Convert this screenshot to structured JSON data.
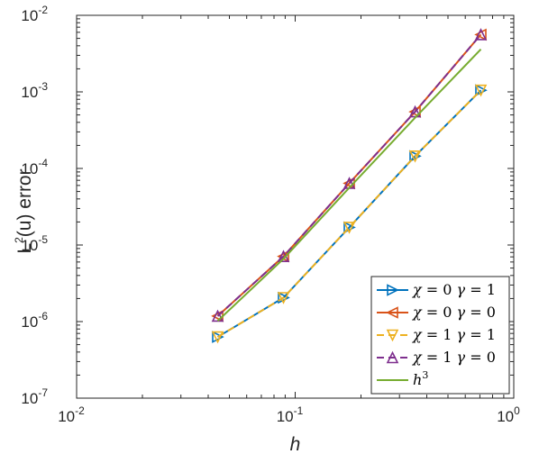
{
  "chart_data": {
    "type": "line",
    "xscale": "log",
    "yscale": "log",
    "xlim": [
      0.01,
      1
    ],
    "ylim": [
      1e-07,
      0.01
    ],
    "grid": false,
    "legend_position": "bottom-right",
    "xlabel": "h",
    "ylabel_base": "L",
    "ylabel_sup": "2",
    "ylabel_rest": "(u) error",
    "x_ticks": [
      {
        "value": 0.01,
        "base": "10",
        "exp": "-2"
      },
      {
        "value": 0.1,
        "base": "10",
        "exp": "-1"
      },
      {
        "value": 1,
        "base": "10",
        "exp": "0"
      }
    ],
    "y_ticks": [
      {
        "value": 1e-07,
        "base": "10",
        "exp": "-7"
      },
      {
        "value": 1e-06,
        "base": "10",
        "exp": "-6"
      },
      {
        "value": 1e-05,
        "base": "10",
        "exp": "-5"
      },
      {
        "value": 0.0001,
        "base": "10",
        "exp": "-4"
      },
      {
        "value": 0.001,
        "base": "10",
        "exp": "-3"
      },
      {
        "value": 0.01,
        "base": "10",
        "exp": "-2"
      }
    ],
    "series": [
      {
        "label_parts": [
          "χ",
          " = 0  ",
          "γ",
          " = 1"
        ],
        "color": "#0072bd",
        "marker": "triangle-right",
        "dash": "solid",
        "x": [
          0.0442,
          0.0884,
          0.1768,
          0.3536,
          0.7071
        ],
        "y": [
          6.3e-07,
          2.05e-06,
          1.7e-05,
          0.000145,
          0.00105
        ]
      },
      {
        "label_parts": [
          "χ",
          " = 0  ",
          "γ",
          " = 0"
        ],
        "color": "#d95319",
        "marker": "triangle-left",
        "dash": "solid",
        "x": [
          0.0442,
          0.0884,
          0.1768,
          0.3536,
          0.7071
        ],
        "y": [
          1.18e-06,
          7.1e-06,
          6.4e-05,
          0.00055,
          0.0056
        ]
      },
      {
        "label_parts": [
          "χ",
          " = 1  ",
          "γ",
          " = 1"
        ],
        "color": "#edb120",
        "marker": "triangle-down",
        "dash": "dashed",
        "x": [
          0.0442,
          0.0884,
          0.1768,
          0.3536,
          0.7071
        ],
        "y": [
          6.3e-07,
          2.05e-06,
          1.7e-05,
          0.000145,
          0.00105
        ]
      },
      {
        "label_parts": [
          "χ",
          " = 1  ",
          "γ",
          " = 0"
        ],
        "color": "#7e2f8e",
        "marker": "triangle-up",
        "dash": "dashed",
        "x": [
          0.0442,
          0.0884,
          0.1768,
          0.3536,
          0.7071
        ],
        "y": [
          1.18e-06,
          7.1e-06,
          6.4e-05,
          0.00055,
          0.0056
        ]
      },
      {
        "label_parts": [
          "h",
          "3"
        ],
        "color": "#77ac30",
        "marker": "none",
        "dash": "solid",
        "x": [
          0.0442,
          0.0884,
          0.1768,
          0.3536,
          0.7071
        ],
        "y": [
          1.02e-06,
          6.6e-06,
          5.6e-05,
          0.00046,
          0.0036
        ]
      }
    ]
  }
}
